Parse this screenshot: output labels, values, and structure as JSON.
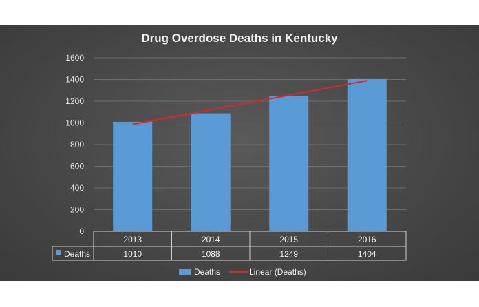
{
  "colors": {
    "bar": "#5b9bd5",
    "trendline": "#d9262b",
    "grid": "#6e6e6e",
    "text": "#f0f0f0",
    "background": "#474747"
  },
  "chart_data": {
    "type": "bar",
    "title": "Drug Overdose Deaths in Kentucky",
    "categories": [
      "2013",
      "2014",
      "2015",
      "2016"
    ],
    "series": [
      {
        "name": "Deaths",
        "values": [
          1010,
          1088,
          1249,
          1404
        ]
      }
    ],
    "trendline": {
      "type": "linear",
      "name": "Linear (Deaths)",
      "of_series": "Deaths"
    },
    "ylim": [
      0,
      1600
    ],
    "y_ticks": [
      0,
      200,
      400,
      600,
      800,
      1000,
      1200,
      1400,
      1600
    ],
    "grid": true,
    "data_table": {
      "row_label": "Deaths",
      "values": [
        "1010",
        "1088",
        "1249",
        "1404"
      ]
    },
    "legend": {
      "position": "bottom",
      "items": [
        "Deaths",
        "Linear (Deaths)"
      ]
    }
  }
}
